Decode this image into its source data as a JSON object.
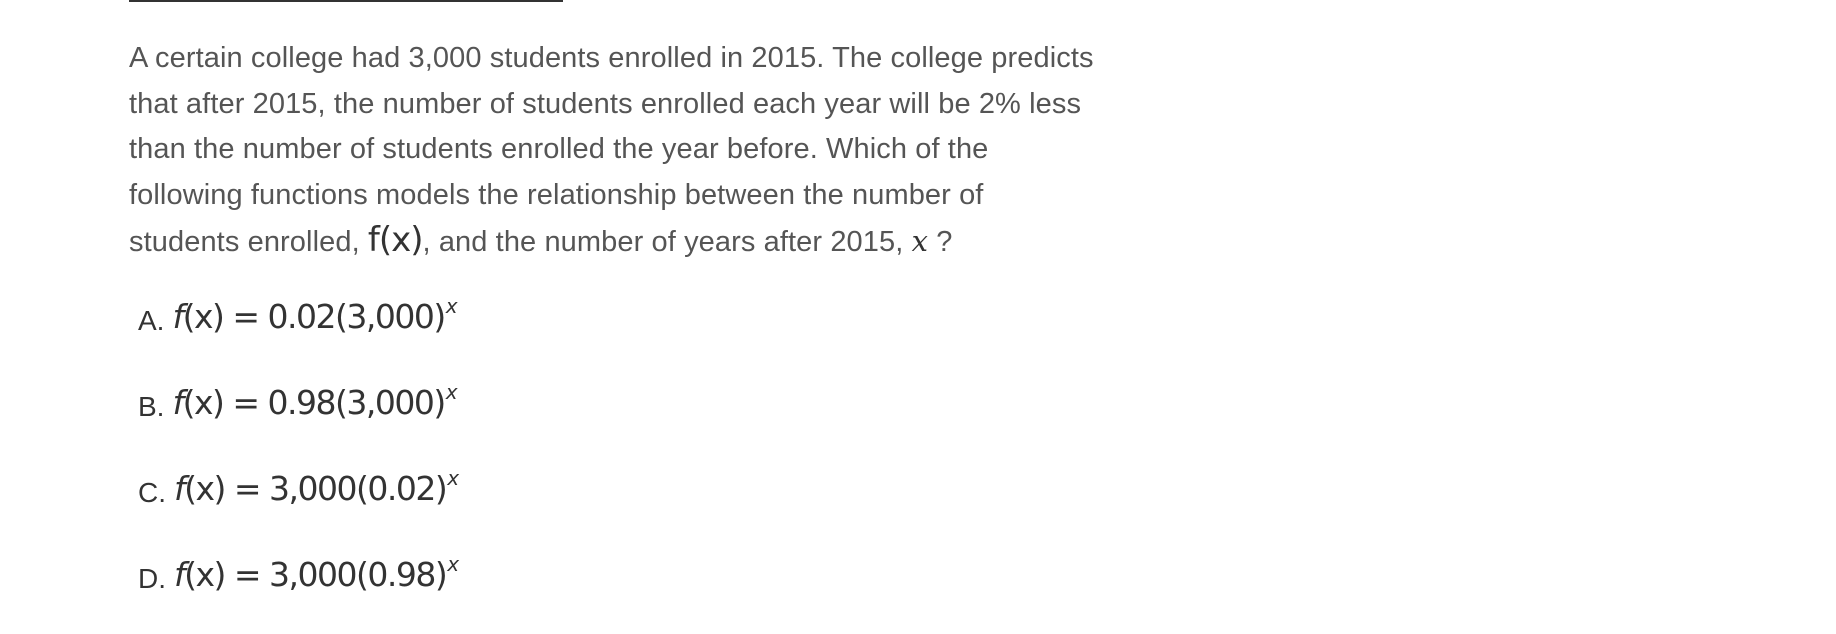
{
  "question": {
    "lines": [
      "A certain college had 3,000 students enrolled in 2015. The college predicts",
      "that after 2015, the number of students enrolled each year will be 2% less",
      "than the number of students enrolled the year before. Which of the",
      "following functions models the relationship between the number of"
    ],
    "last_line_prefix": "students enrolled, ",
    "last_line_fx": "f(x)",
    "last_line_middle": ", and the number of years after 2015, ",
    "last_line_var": "x",
    "last_line_suffix": " ?"
  },
  "choices": [
    {
      "letter": "A.",
      "f": "f",
      "lhs_rest": "(x) = ",
      "expr": "0.02(3,000)",
      "exp": "x"
    },
    {
      "letter": "B.",
      "f": "f",
      "lhs_rest": "(x) = ",
      "expr": "0.98(3,000)",
      "exp": "x"
    },
    {
      "letter": "C.",
      "f": "f",
      "lhs_rest": "(x) = ",
      "expr": "3,000(0.02)",
      "exp": "x"
    },
    {
      "letter": "D.",
      "f": "f",
      "lhs_rest": "(x) = ",
      "expr": "3,000(0.98)",
      "exp": "x"
    }
  ]
}
